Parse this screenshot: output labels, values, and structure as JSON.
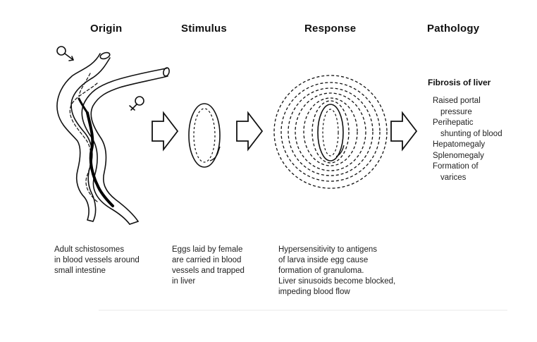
{
  "headers": {
    "origin": "Origin",
    "stimulus": "Stimulus",
    "response": "Response",
    "pathology": "Pathology"
  },
  "symbols": {
    "male": "♂",
    "female": "♀"
  },
  "captions": {
    "origin": [
      "Adult schistosomes",
      "in blood vessels around",
      "small intestine"
    ],
    "stimulus": [
      "Eggs laid by female",
      "are carried in blood",
      "vessels and trapped",
      "in liver"
    ],
    "response": [
      "Hypersensitivity to antigens",
      "of larva inside egg cause",
      "formation of granuloma.",
      "Liver sinusoids become blocked,",
      "impeding blood flow"
    ]
  },
  "pathology": {
    "title": "Fibrosis of liver",
    "items": [
      {
        "line1": "Raised portal",
        "line2": "pressure"
      },
      {
        "line1": "Perihepatic",
        "line2": "shunting of blood"
      },
      {
        "line1": "Hepatomegaly",
        "line2": ""
      },
      {
        "line1": "Splenomegaly",
        "line2": ""
      },
      {
        "line1": "Formation of",
        "line2": "varices"
      }
    ]
  }
}
